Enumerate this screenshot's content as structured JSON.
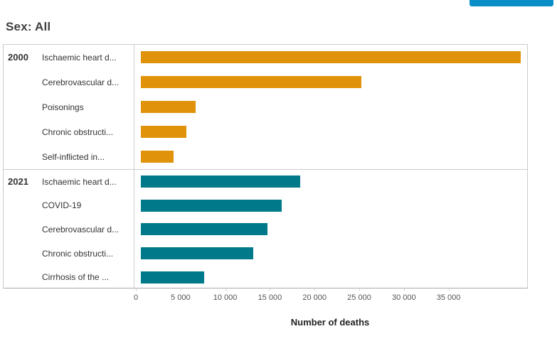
{
  "header": {
    "title": "Sex: All",
    "top_button": {
      "label": "",
      "color": "#0a8ec7"
    }
  },
  "chart_data": {
    "type": "bar",
    "orientation": "horizontal",
    "title": "Sex: All",
    "xlabel": "Number of deaths",
    "ylabel": "",
    "xlim": [
      0,
      43800
    ],
    "grid": false,
    "legend_position": "none",
    "x_ticks": [
      {
        "value": 0,
        "label": "0"
      },
      {
        "value": 5000,
        "label": "5 000"
      },
      {
        "value": 10000,
        "label": "10 000"
      },
      {
        "value": 15000,
        "label": "15 000"
      },
      {
        "value": 20000,
        "label": "20 000"
      },
      {
        "value": 25000,
        "label": "25 000"
      },
      {
        "value": 30000,
        "label": "30 000"
      },
      {
        "value": 35000,
        "label": "35 000"
      }
    ],
    "groups": [
      {
        "year": "2000",
        "color": "#e0920a",
        "bars": [
          {
            "label": "Ischaemic heart d...",
            "value": 42500
          },
          {
            "label": "Cerebrovascular d...",
            "value": 24700
          },
          {
            "label": "Poisonings",
            "value": 6100
          },
          {
            "label": "Chronic obstructi...",
            "value": 5100
          },
          {
            "label": "Self-inflicted in...",
            "value": 3700
          }
        ]
      },
      {
        "year": "2021",
        "color": "#00798a",
        "bars": [
          {
            "label": "Ischaemic heart d...",
            "value": 17800
          },
          {
            "label": "COVID-19",
            "value": 15800
          },
          {
            "label": "Cerebrovascular d...",
            "value": 14200
          },
          {
            "label": "Chronic obstructi...",
            "value": 12600
          },
          {
            "label": "Cirrhosis of the ...",
            "value": 7100
          }
        ]
      }
    ]
  }
}
